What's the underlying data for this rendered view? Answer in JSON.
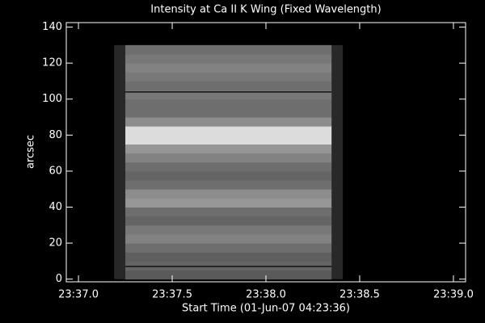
{
  "chart_data": {
    "type": "image",
    "title": "Intensity at Ca II K Wing (Fixed Wavelength)",
    "xlabel": "Start Time (01-Jun-07 04:23:36)",
    "ylabel": "arcsec",
    "xlim": [
      36.935,
      39.065
    ],
    "xticks": [
      {
        "value": 37.0,
        "label": "23:37.0"
      },
      {
        "value": 37.5,
        "label": "23:37.5"
      },
      {
        "value": 38.0,
        "label": "23:38.0"
      },
      {
        "value": 38.5,
        "label": "23:38.5"
      },
      {
        "value": 39.0,
        "label": "23:39.0"
      }
    ],
    "ylim": [
      -1.5,
      142.5
    ],
    "yticks": [
      0,
      20,
      40,
      60,
      80,
      100,
      120,
      140
    ],
    "frame_x": [
      37.19,
      38.41
    ],
    "frame_gray": 40,
    "image_x": [
      37.25,
      38.35
    ],
    "row_edges": [
      0,
      5,
      10,
      15,
      20,
      25,
      30,
      35,
      40,
      45,
      50,
      55,
      60,
      65,
      70,
      75,
      80,
      85,
      90,
      95,
      100,
      105,
      110,
      115,
      120,
      125,
      130
    ],
    "row_gray": [
      90,
      100,
      95,
      110,
      130,
      120,
      100,
      110,
      150,
      140,
      110,
      100,
      110,
      130,
      150,
      220,
      220,
      140,
      110,
      110,
      120,
      110,
      120,
      130,
      120,
      110
    ],
    "lines_y": [
      104,
      7
    ]
  }
}
